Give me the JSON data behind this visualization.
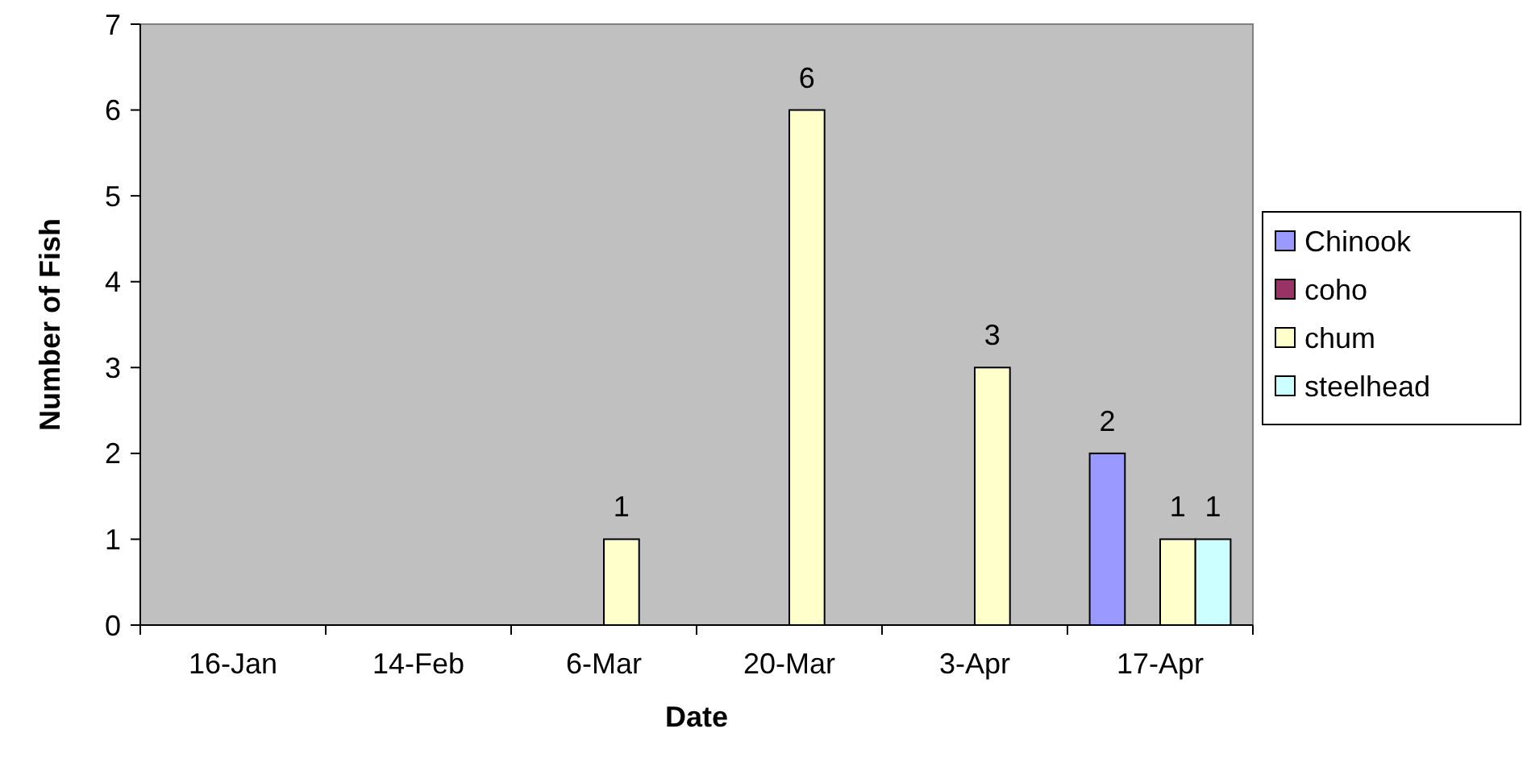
{
  "chart_data": {
    "type": "bar",
    "xlabel": "Date",
    "ylabel": "Number of Fish",
    "categories": [
      "16-Jan",
      "14-Feb",
      "6-Mar",
      "20-Mar",
      "3-Apr",
      "17-Apr"
    ],
    "series": [
      {
        "name": "Chinook",
        "color": "#9999ff",
        "values": [
          null,
          null,
          null,
          null,
          null,
          2
        ]
      },
      {
        "name": "coho",
        "color": "#993366",
        "values": [
          null,
          null,
          null,
          null,
          null,
          null
        ]
      },
      {
        "name": "chum",
        "color": "#ffffcc",
        "values": [
          null,
          null,
          1,
          6,
          3,
          1
        ]
      },
      {
        "name": "steelhead",
        "color": "#ccffff",
        "values": [
          null,
          null,
          null,
          null,
          null,
          1
        ]
      }
    ],
    "ylim": [
      0,
      7
    ],
    "yticks": [
      0,
      1,
      2,
      3,
      4,
      5,
      6,
      7
    ],
    "grid": false,
    "legend": "right",
    "data_labels": true
  }
}
